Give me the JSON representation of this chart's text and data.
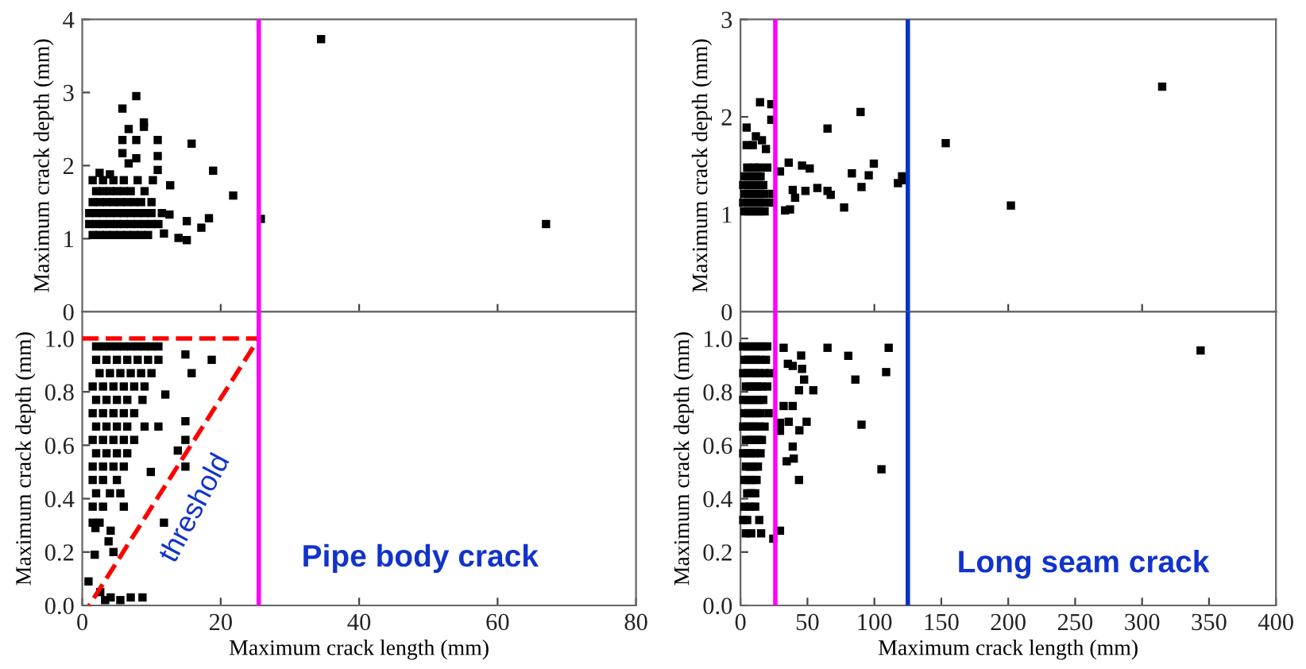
{
  "chart_data": [
    {
      "type": "scatter",
      "ylabel": "Maximum crack depth (mm)",
      "xlim": [
        0,
        80
      ],
      "ylim": [
        0,
        4
      ],
      "xticks": [
        {
          "value": 20,
          "label": null
        },
        {
          "value": 40,
          "label": null
        },
        {
          "value": 60,
          "label": null
        }
      ],
      "yticks": [
        0,
        1,
        2,
        3,
        4
      ],
      "tick_labels": "y",
      "marker": "square",
      "series": [
        {
          "color": "#000000",
          "x": [
            1.5,
            2.5,
            3.5,
            4.5,
            5.5,
            6.5,
            7.5,
            8.5,
            9.5,
            1,
            2,
            3,
            4,
            5,
            6,
            7,
            8,
            9,
            10,
            11,
            1,
            2,
            3,
            4,
            5,
            6,
            7,
            8,
            9,
            10,
            11.5,
            1.5,
            2.5,
            3.5,
            4.5,
            5.5,
            6.5,
            7.5,
            8.5,
            10,
            2,
            3,
            4,
            5,
            6,
            7,
            9,
            1.5,
            3,
            4.5,
            6,
            8,
            34.5,
            67,
            25.8,
            7.8,
            5.8,
            6.7,
            8.9,
            8.9,
            5.8,
            7.8,
            10.9,
            5.8,
            7.8,
            6.7,
            10.9,
            10.9,
            15.8,
            18.9,
            21.8,
            15.1,
            17.2,
            18.3,
            13.9,
            15.1,
            12.6,
            12.7,
            11.8,
            10.2,
            2.5,
            4
          ],
          "values": [
            1.05,
            1.05,
            1.05,
            1.05,
            1.05,
            1.05,
            1.05,
            1.05,
            1.05,
            1.2,
            1.2,
            1.2,
            1.2,
            1.2,
            1.2,
            1.2,
            1.2,
            1.2,
            1.2,
            1.2,
            1.35,
            1.35,
            1.35,
            1.35,
            1.35,
            1.35,
            1.35,
            1.35,
            1.35,
            1.35,
            1.35,
            1.5,
            1.5,
            1.5,
            1.5,
            1.5,
            1.5,
            1.5,
            1.5,
            1.5,
            1.65,
            1.65,
            1.65,
            1.65,
            1.65,
            1.65,
            1.65,
            1.8,
            1.8,
            1.8,
            1.8,
            1.8,
            3.73,
            1.2,
            1.27,
            2.95,
            2.78,
            2.5,
            2.59,
            2.53,
            2.35,
            2.35,
            2.35,
            2.17,
            2.1,
            2.03,
            2.13,
            1.94,
            2.3,
            1.93,
            1.59,
            1.24,
            1.15,
            1.28,
            1.01,
            0.98,
            1.33,
            1.73,
            1.07,
            1.8,
            1.9,
            1.88
          ]
        }
      ],
      "ref_lines": [
        {
          "axis": "x",
          "value": 25.5,
          "color": "#ff00ff"
        }
      ]
    },
    {
      "type": "scatter",
      "xlabel": "Maximum crack length (mm)",
      "ylabel": "Maximum crack depth (mm)",
      "xlim": [
        0,
        80
      ],
      "ylim": [
        0,
        1.1
      ],
      "xticks": [
        0,
        20,
        40,
        60,
        80
      ],
      "yticks": [
        {
          "value": 0,
          "label": "0.0"
        },
        {
          "value": 0.2,
          "label": "0.2"
        },
        {
          "value": 0.4,
          "label": "0.4"
        },
        {
          "value": 0.6,
          "label": "0.6"
        },
        {
          "value": 0.8,
          "label": "0.8"
        },
        {
          "value": 1,
          "label": "1.0"
        }
      ],
      "marker": "square",
      "series": [
        {
          "color": "#000000",
          "x": [
            2,
            3,
            4,
            5,
            6,
            7,
            8,
            9,
            10,
            11,
            2,
            3.5,
            5,
            6.5,
            8,
            9.5,
            11,
            2.5,
            4,
            5.5,
            7,
            8.5,
            10,
            1.5,
            3,
            4.5,
            6,
            7.5,
            9,
            2,
            3.5,
            5,
            6.5,
            1.5,
            3,
            4.5,
            6,
            7.5,
            2,
            3.5,
            5,
            6.5,
            9,
            1.5,
            3,
            4.5,
            6,
            7.5,
            2,
            3.5,
            5,
            6.5,
            1.5,
            3,
            4.5,
            6,
            1.5,
            3,
            5,
            2,
            4,
            5.5,
            1.5,
            3,
            6,
            1.5,
            2.5,
            18.7,
            14.9,
            15.8,
            14.9,
            14.9,
            13.8,
            14.9,
            11.8,
            9.9,
            11,
            12,
            8.7,
            0.9,
            1.8,
            4.1,
            8.7,
            5.5,
            2.6,
            3.3,
            1.9,
            4.1,
            3.8,
            7,
            4.5
          ],
          "values": [
            0.97,
            0.97,
            0.97,
            0.97,
            0.97,
            0.97,
            0.97,
            0.97,
            0.97,
            0.97,
            0.92,
            0.92,
            0.92,
            0.92,
            0.92,
            0.92,
            0.92,
            0.87,
            0.87,
            0.87,
            0.87,
            0.87,
            0.87,
            0.82,
            0.82,
            0.82,
            0.82,
            0.82,
            0.82,
            0.77,
            0.77,
            0.77,
            0.77,
            0.72,
            0.72,
            0.72,
            0.72,
            0.72,
            0.67,
            0.67,
            0.67,
            0.67,
            0.67,
            0.62,
            0.62,
            0.62,
            0.62,
            0.62,
            0.57,
            0.57,
            0.57,
            0.57,
            0.52,
            0.52,
            0.52,
            0.52,
            0.47,
            0.47,
            0.47,
            0.42,
            0.42,
            0.42,
            0.37,
            0.37,
            0.37,
            0.31,
            0.31,
            0.92,
            0.94,
            0.87,
            0.69,
            0.62,
            0.58,
            0.52,
            0.31,
            0.5,
            0.67,
            0.79,
            0.77,
            0.09,
            0.19,
            0.03,
            0.03,
            0.02,
            0.05,
            0.02,
            0.29,
            0.28,
            0.24,
            0.03,
            0.2
          ]
        },
        {
          "type": "line",
          "color": "#ff0000",
          "line_style": "dashed",
          "marker": "none",
          "x": [
            0,
            25.5,
            1
          ],
          "values": [
            1,
            1,
            0
          ]
        }
      ],
      "ref_lines": [
        {
          "axis": "x",
          "value": 25.5,
          "color": "#ff00ff"
        }
      ],
      "annotations": [
        "threshold",
        "Pipe body crack"
      ]
    },
    {
      "type": "scatter",
      "ylabel": "Maximum crack depth (mm)",
      "xlim": [
        0,
        400
      ],
      "ylim": [
        0,
        3
      ],
      "xticks": [
        {
          "value": 100,
          "label": null
        },
        {
          "value": 200,
          "label": null
        },
        {
          "value": 300,
          "label": null
        }
      ],
      "yticks": [
        0,
        1,
        2,
        3
      ],
      "tick_labels": "y",
      "marker": "square",
      "series": [
        {
          "color": "#000000",
          "x": [
            3,
            6,
            9,
            12,
            15,
            18,
            2,
            5,
            8,
            11,
            14,
            17,
            22,
            3,
            6,
            9,
            12,
            15,
            18,
            24,
            2,
            5,
            8,
            11,
            14,
            17,
            3,
            6,
            9,
            12,
            15,
            5,
            10,
            14,
            20,
            14.6,
            23,
            23,
            4.6,
            11.5,
            16,
            19,
            4.6,
            9.2,
            29.5,
            36,
            46,
            51.7,
            39,
            33.3,
            37,
            40.8,
            48.5,
            57.4,
            65,
            65,
            67.4,
            77.4,
            89.7,
            83.2,
            90.4,
            95.8,
            99.6,
            117.6,
            120.7,
            122.6,
            153.3,
            202,
            315
          ],
          "values": [
            1.03,
            1.03,
            1.03,
            1.03,
            1.03,
            1.03,
            1.12,
            1.12,
            1.12,
            1.12,
            1.12,
            1.12,
            1.12,
            1.21,
            1.21,
            1.21,
            1.21,
            1.21,
            1.21,
            1.21,
            1.3,
            1.3,
            1.3,
            1.3,
            1.3,
            1.3,
            1.39,
            1.39,
            1.39,
            1.39,
            1.39,
            1.48,
            1.48,
            1.48,
            1.48,
            2.15,
            2.13,
            1.97,
            1.89,
            1.8,
            1.76,
            1.67,
            1.71,
            1.71,
            1.44,
            1.53,
            1.5,
            1.47,
            1.25,
            1.04,
            1.05,
            1.17,
            1.24,
            1.27,
            1.88,
            1.24,
            1.2,
            1.07,
            2.05,
            1.42,
            1.28,
            1.4,
            1.52,
            1.32,
            1.39,
            1.35,
            1.73,
            1.09,
            2.31
          ]
        }
      ],
      "ref_lines": [
        {
          "axis": "x",
          "value": 26,
          "color": "#ff00ff"
        },
        {
          "axis": "x",
          "value": 125,
          "color": "#0033cc"
        }
      ]
    },
    {
      "type": "scatter",
      "xlabel": "Maximum crack length (mm)",
      "ylabel": "Maximum crack depth (mm)",
      "xlim": [
        0,
        400
      ],
      "ylim": [
        0,
        1.1
      ],
      "xticks": [
        0,
        50,
        100,
        150,
        200,
        250,
        300,
        350,
        400
      ],
      "yticks": [
        {
          "value": 0,
          "label": "0.0"
        },
        {
          "value": 0.2,
          "label": "0.2"
        },
        {
          "value": 0.4,
          "label": "0.4"
        },
        {
          "value": 0.6,
          "label": "0.6"
        },
        {
          "value": 0.8,
          "label": "0.8"
        },
        {
          "value": 1,
          "label": "1.0"
        }
      ],
      "marker": "square",
      "series": [
        {
          "color": "#000000",
          "x": [
            2,
            5,
            8,
            11,
            14,
            17,
            20,
            3,
            6,
            9,
            12,
            15,
            19,
            2,
            5,
            8,
            11,
            14,
            18,
            22,
            4,
            7,
            10,
            13,
            16,
            20,
            2,
            5,
            8,
            11,
            14,
            17,
            3,
            6,
            9,
            12,
            15,
            21,
            2,
            5,
            8,
            11,
            14,
            18,
            4,
            7,
            10,
            13,
            16,
            2,
            5,
            8,
            11,
            15,
            4,
            7,
            10,
            13,
            3,
            6,
            9,
            12,
            5,
            8,
            11,
            3,
            7,
            11,
            2,
            5,
            14,
            4,
            8,
            32.2,
            65,
            80.5,
            110.7,
            108.8,
            85.8,
            90.4,
            105.3,
            54.4,
            43.7,
            47.5,
            46,
            45.3,
            35.4,
            39,
            32.2,
            39,
            36,
            29.5,
            29.5,
            49.4,
            44,
            39,
            39.8,
            34.5,
            43.7,
            29.5,
            24.5,
            15.4,
            343.7
          ],
          "values": [
            0.97,
            0.97,
            0.97,
            0.97,
            0.97,
            0.97,
            0.97,
            0.92,
            0.92,
            0.92,
            0.92,
            0.92,
            0.92,
            0.87,
            0.87,
            0.87,
            0.87,
            0.87,
            0.87,
            0.87,
            0.82,
            0.82,
            0.82,
            0.82,
            0.82,
            0.82,
            0.77,
            0.77,
            0.77,
            0.77,
            0.77,
            0.77,
            0.72,
            0.72,
            0.72,
            0.72,
            0.72,
            0.72,
            0.67,
            0.67,
            0.67,
            0.67,
            0.67,
            0.67,
            0.62,
            0.62,
            0.62,
            0.62,
            0.62,
            0.57,
            0.57,
            0.57,
            0.57,
            0.57,
            0.52,
            0.52,
            0.52,
            0.52,
            0.47,
            0.47,
            0.47,
            0.47,
            0.42,
            0.42,
            0.42,
            0.37,
            0.37,
            0.37,
            0.32,
            0.32,
            0.32,
            0.27,
            0.27,
            0.965,
            0.965,
            0.935,
            0.965,
            0.874,
            0.846,
            0.677,
            0.51,
            0.806,
            0.806,
            0.846,
            0.886,
            0.936,
            0.905,
            0.897,
            0.747,
            0.747,
            0.688,
            0.684,
            0.654,
            0.688,
            0.656,
            0.595,
            0.55,
            0.54,
            0.47,
            0.28,
            0.25,
            0.27,
            0.955
          ]
        }
      ],
      "ref_lines": [
        {
          "axis": "x",
          "value": 26,
          "color": "#ff00ff"
        },
        {
          "axis": "x",
          "value": 125,
          "color": "#0033cc"
        }
      ],
      "annotations": [
        "Long seam crack"
      ]
    }
  ]
}
